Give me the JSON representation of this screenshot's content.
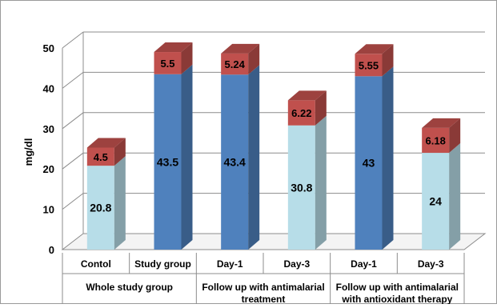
{
  "chart_data": {
    "type": "bar",
    "stacked": true,
    "three_d": true,
    "ylabel": "mg/dl",
    "xlabel": "",
    "ylim": [
      0,
      50
    ],
    "y_ticks": [
      "0",
      "10",
      "20",
      "30",
      "40",
      "50"
    ],
    "grid": true,
    "legend": "none",
    "categories": [
      "Contol",
      "Study group",
      "Day-1",
      "Day-3",
      "Day-1",
      "Day-3"
    ],
    "groups": [
      {
        "label": "Whole study group",
        "categories": [
          0,
          1
        ]
      },
      {
        "label": "Follow up with antimalarial treatment",
        "categories": [
          2,
          3
        ]
      },
      {
        "label": "Follow up with antimalarial with antioxidant therapy",
        "categories": [
          4,
          5
        ]
      }
    ],
    "series": [
      {
        "values": [
          20.8,
          43.5,
          43.4,
          30.8,
          43,
          24
        ],
        "labels": [
          "20.8",
          "43.5",
          "43.4",
          "30.8",
          "43",
          "24"
        ]
      },
      {
        "values": [
          4.5,
          5.5,
          5.24,
          6.22,
          5.55,
          6.18
        ],
        "labels": [
          "4.5",
          "5.5",
          "5.24",
          "6.22",
          "5.55",
          "6.18"
        ]
      }
    ],
    "bar_colors": [
      "#b7dde8",
      "#4f81bd",
      "#4f81bd",
      "#b7dde8",
      "#4f81bd",
      "#b7dde8"
    ],
    "top_color": "#c0504d"
  }
}
